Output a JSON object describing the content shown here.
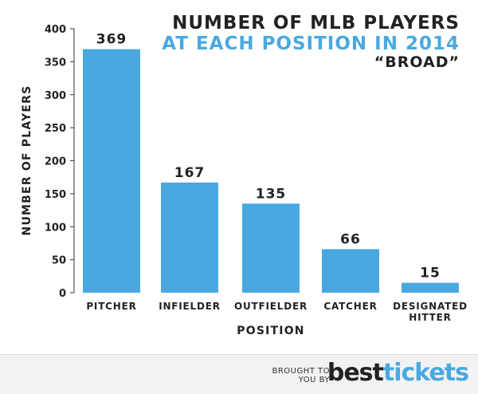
{
  "chart_data": {
    "type": "bar",
    "title": [
      "NUMBER OF MLB PLAYERS",
      "AT EACH POSITION IN 2014",
      "“BROAD”"
    ],
    "xlabel": "POSITION",
    "ylabel": "NUMBER OF PLAYERS",
    "categories": [
      [
        "PITCHER"
      ],
      [
        "INFIELDER"
      ],
      [
        "OUTFIELDER"
      ],
      [
        "CATCHER"
      ],
      [
        "DESIGNATED",
        "HITTER"
      ]
    ],
    "values": [
      369,
      167,
      135,
      66,
      15
    ],
    "ylim": [
      0,
      400
    ],
    "yticks": [
      0,
      50,
      100,
      150,
      200,
      250,
      300,
      350,
      400
    ],
    "bar_color": "#4aa8e0",
    "title_accent_color": "#4aa8e0",
    "grid": false
  },
  "footer": {
    "brought_line1": "BROUGHT TO",
    "brought_line2": "YOU BY",
    "brand_part1": "best",
    "brand_part2": "tickets"
  }
}
